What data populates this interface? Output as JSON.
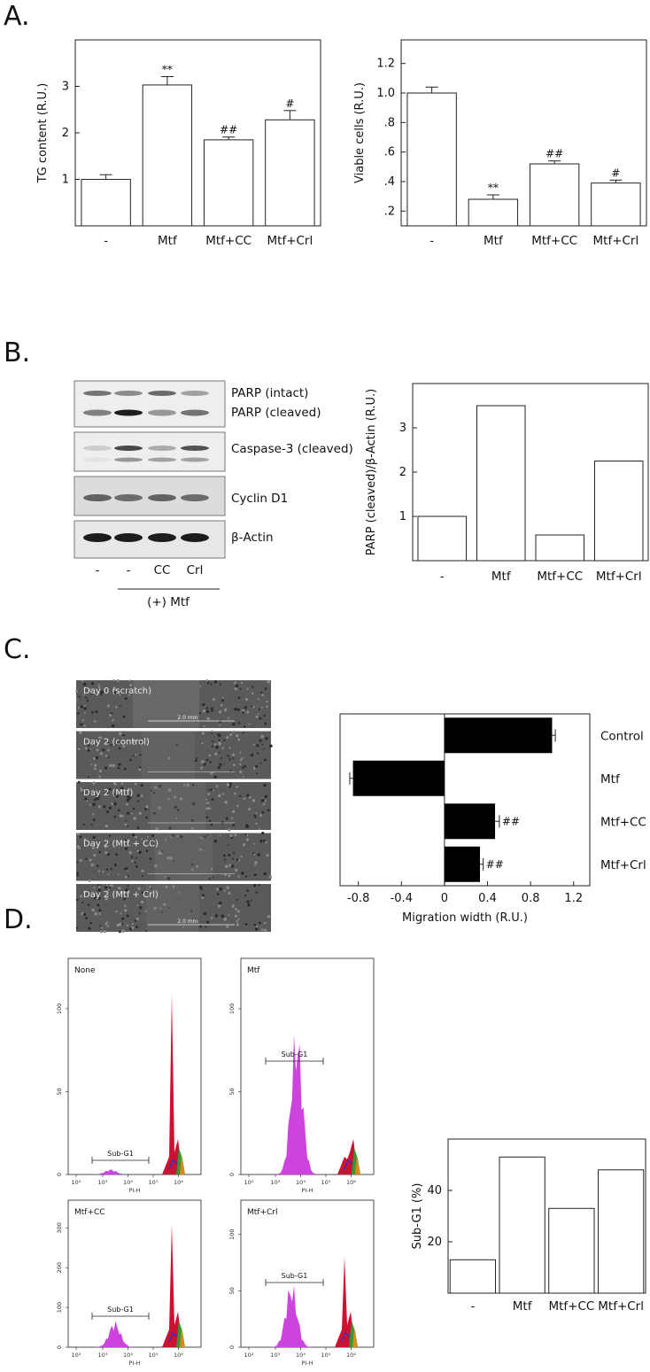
{
  "panels": {
    "a": "A.",
    "b": "B.",
    "c": "C.",
    "d": "D."
  },
  "chart_data": [
    {
      "id": "tg",
      "type": "bar",
      "categories": [
        "-",
        "Mtf",
        "Mtf+CC",
        "Mtf+Crl"
      ],
      "values": [
        1.0,
        3.03,
        1.85,
        2.28
      ],
      "errors": [
        0.1,
        0.18,
        0.06,
        0.2
      ],
      "annotations": [
        "",
        "**",
        "##",
        "#"
      ],
      "ylabel": "TG content (R.U.)",
      "yticks": [
        "1",
        "2",
        "3"
      ],
      "ytick_values": [
        1,
        2,
        3
      ],
      "ylim": [
        0,
        4
      ]
    },
    {
      "id": "viable",
      "type": "bar",
      "categories": [
        "-",
        "Mtf",
        "Mtf+CC",
        "Mtf+Crl"
      ],
      "values": [
        1.0,
        0.28,
        0.52,
        0.39
      ],
      "errors": [
        0.04,
        0.03,
        0.02,
        0.02
      ],
      "annotations": [
        "",
        "**",
        "##",
        "#"
      ],
      "ylabel": "Viable cells (R.U.)",
      "yticks": [
        ".2",
        ".4",
        ".6",
        ".8",
        "1.0",
        "1.2"
      ],
      "ytick_values": [
        0.2,
        0.4,
        0.6,
        0.8,
        1.0,
        1.2
      ],
      "ylim": [
        0.1,
        1.36
      ]
    },
    {
      "id": "parp",
      "type": "bar",
      "categories": [
        "-",
        "Mtf",
        "Mtf+CC",
        "Mtf+Crl"
      ],
      "values": [
        1.0,
        3.5,
        0.58,
        2.25
      ],
      "ylabel": "PARP (cleaved)/β-Actin (R.U.)",
      "yticks": [
        "1",
        "2",
        "3"
      ],
      "ytick_values": [
        1,
        2,
        3
      ],
      "ylim": [
        0,
        4
      ]
    },
    {
      "id": "migration",
      "type": "bar",
      "orientation": "horizontal",
      "categories": [
        "Control",
        "Mtf",
        "Mtf+CC",
        "Mtf+Crl"
      ],
      "values": [
        1.0,
        -0.85,
        0.47,
        0.33
      ],
      "errors": [
        0.03,
        0.03,
        0.04,
        0.03
      ],
      "annotations": [
        "",
        "",
        "##",
        "##"
      ],
      "xlabel": "Migration width (R.U.)",
      "xticks": [
        "-0.8",
        "-0.4",
        "0",
        "0.4",
        "0.8",
        "1.2"
      ],
      "xtick_values": [
        -0.8,
        -0.4,
        0,
        0.4,
        0.8,
        1.2
      ],
      "xlim": [
        -0.97,
        1.35
      ]
    },
    {
      "id": "subg1",
      "type": "bar",
      "categories": [
        "-",
        "Mtf",
        "Mtf+CC",
        "Mtf+Crl"
      ],
      "values": [
        13,
        53,
        33,
        48
      ],
      "ylabel": "Sub-G1 (%)",
      "yticks": [
        "20",
        "40"
      ],
      "ytick_values": [
        20,
        40
      ],
      "ylim": [
        0,
        60
      ]
    }
  ],
  "blot": {
    "bands": [
      "PARP (intact)",
      "PARP (cleaved)",
      "Caspase-3 (cleaved)",
      "Cyclin D1",
      "β-Actin"
    ],
    "lanes": [
      "-",
      "-",
      "CC",
      "Crl"
    ],
    "treatment": "(+) Mtf"
  },
  "scratch": {
    "images": [
      "Day 0 (scratch)",
      "Day 2 (control)",
      "Day 2 (Mtf)",
      "Day 2 (Mtf + CC)",
      "Day 2 (Mtf + Crl)"
    ],
    "scale_label": "2.0 mm"
  },
  "flow": {
    "plots": [
      {
        "label": "None",
        "yticks": [
          "0",
          "50",
          "100"
        ]
      },
      {
        "label": "Mtf",
        "yticks": [
          "0",
          "50",
          "100"
        ]
      },
      {
        "label": "Mtf+CC",
        "yticks": [
          "0",
          "100",
          "200",
          "300"
        ]
      },
      {
        "label": "Mtf+Crl",
        "yticks": [
          "0",
          "50",
          "100"
        ]
      }
    ],
    "gate_label": "Sub-G1",
    "xlabel": "PI-H",
    "xticks": [
      "10²",
      "10³",
      "10⁴",
      "10⁵",
      "10⁶"
    ]
  },
  "colors": {
    "bar_white": "#ffffff",
    "bar_black": "#000000",
    "flow_magenta": "#cc44dd",
    "flow_red": "#cc1133",
    "flow_green": "#339933",
    "flow_orange": "#d98a1a",
    "flow_blue": "#2233cc"
  }
}
